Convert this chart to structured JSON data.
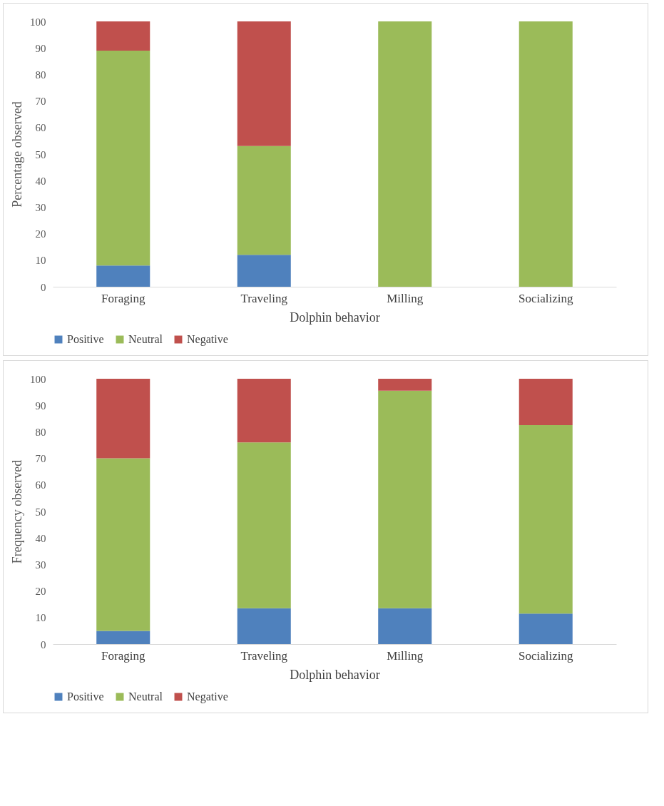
{
  "chart_data": [
    {
      "type": "bar",
      "xlabel": "Dolphin behavior",
      "ylabel": "Percentage observed",
      "categories": [
        "Foraging",
        "Traveling",
        "Milling",
        "Socializing"
      ],
      "stacked": true,
      "ylim": [
        0,
        100
      ],
      "yticks": [
        0,
        10,
        20,
        30,
        40,
        50,
        60,
        70,
        80,
        90,
        100
      ],
      "legend": "bottom",
      "series": [
        {
          "name": "Positive",
          "color": "#4f81bd",
          "values": [
            8,
            12,
            0,
            0
          ]
        },
        {
          "name": "Neutral",
          "color": "#9bbb59",
          "values": [
            81,
            41,
            100,
            100
          ]
        },
        {
          "name": "Negative",
          "color": "#c0504d",
          "values": [
            11,
            47,
            0,
            0
          ]
        }
      ]
    },
    {
      "type": "bar",
      "xlabel": "Dolphin behavior",
      "ylabel": "Frequency observed",
      "categories": [
        "Foraging",
        "Traveling",
        "Milling",
        "Socializing"
      ],
      "stacked": true,
      "ylim": [
        0,
        100
      ],
      "yticks": [
        0,
        10,
        20,
        30,
        40,
        50,
        60,
        70,
        80,
        90,
        100
      ],
      "legend": "bottom",
      "series": [
        {
          "name": "Positive",
          "color": "#4f81bd",
          "values": [
            5,
            13.5,
            13.5,
            11.5
          ]
        },
        {
          "name": "Neutral",
          "color": "#9bbb59",
          "values": [
            65,
            62.5,
            82,
            71
          ]
        },
        {
          "name": "Negative",
          "color": "#c0504d",
          "values": [
            30,
            24,
            4.5,
            17.5
          ]
        }
      ]
    }
  ]
}
